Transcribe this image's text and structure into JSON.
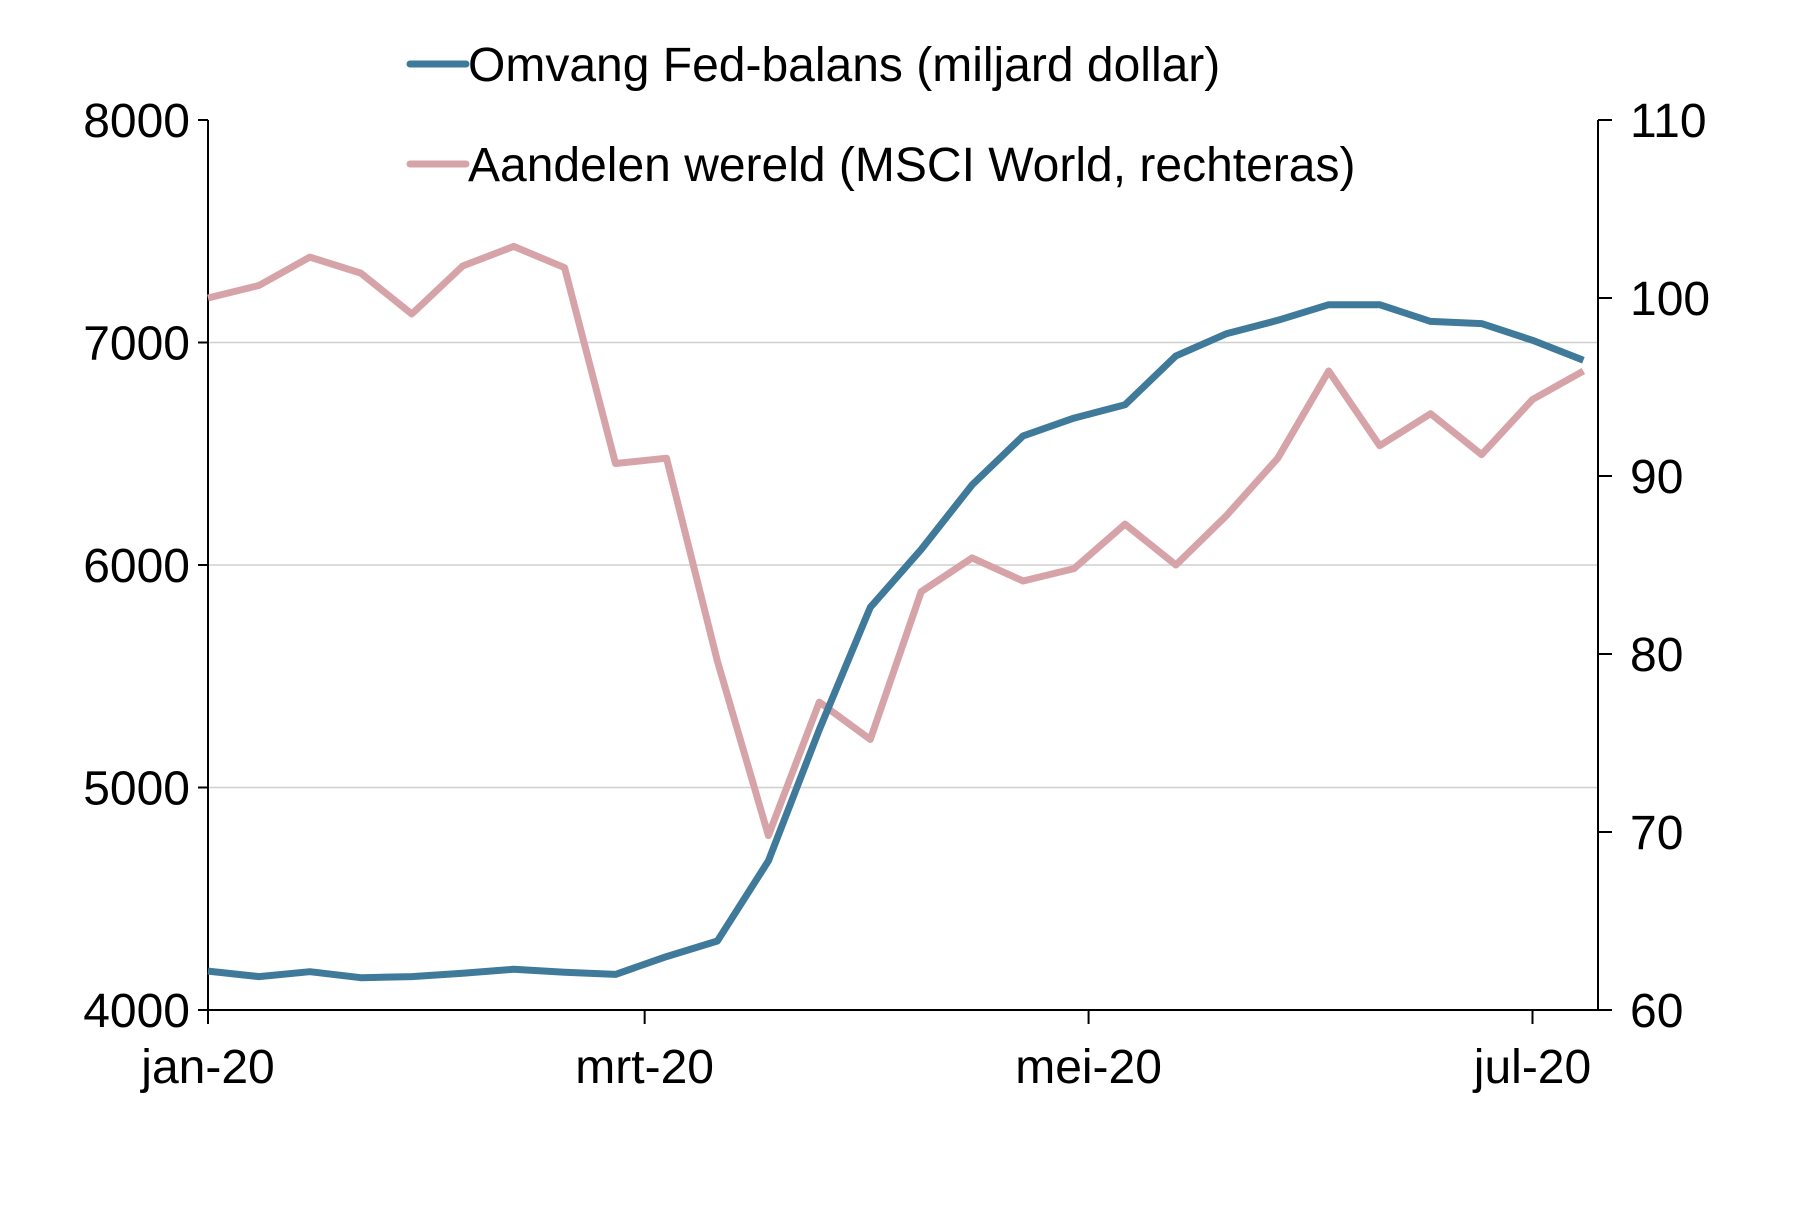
{
  "chart_data": {
    "type": "line",
    "legend_position": "top-center",
    "grid": "horizontal",
    "x_ticks": [
      "jan-20",
      "mrt-20",
      "mei-20",
      "jul-20"
    ],
    "y_left": {
      "ylim": [
        4000,
        8000
      ],
      "ticks": [
        4000,
        5000,
        6000,
        7000,
        8000
      ],
      "grid": true
    },
    "y_right": {
      "ylim": [
        60,
        110
      ],
      "ticks": [
        60,
        70,
        80,
        90,
        100,
        110
      ]
    },
    "series": [
      {
        "name": "Omvang Fed-balans (miljard dollar)",
        "axis": "left",
        "color": "#3f7a9a",
        "x": [
          "2020-01-01",
          "2020-01-08",
          "2020-01-15",
          "2020-01-22",
          "2020-01-29",
          "2020-02-05",
          "2020-02-12",
          "2020-02-19",
          "2020-02-26",
          "2020-03-04",
          "2020-03-11",
          "2020-03-18",
          "2020-03-25",
          "2020-04-01",
          "2020-04-08",
          "2020-04-15",
          "2020-04-22",
          "2020-04-29",
          "2020-05-06",
          "2020-05-13",
          "2020-05-20",
          "2020-05-27",
          "2020-06-03",
          "2020-06-10",
          "2020-06-17",
          "2020-06-24",
          "2020-07-01",
          "2020-07-08"
        ],
        "values": [
          4175,
          4150,
          4172,
          4145,
          4150,
          4165,
          4183,
          4170,
          4160,
          4240,
          4310,
          4670,
          5260,
          5810,
          6070,
          6360,
          6580,
          6660,
          6720,
          6940,
          7040,
          7100,
          7170,
          7170,
          7095,
          7085,
          7010,
          6920
        ]
      },
      {
        "name": "Aandelen wereld (MSCI World, rechteras)",
        "axis": "right",
        "color": "#d6a4a8",
        "x": [
          "2020-01-01",
          "2020-01-08",
          "2020-01-15",
          "2020-01-22",
          "2020-01-29",
          "2020-02-05",
          "2020-02-12",
          "2020-02-19",
          "2020-02-26",
          "2020-03-04",
          "2020-03-11",
          "2020-03-18",
          "2020-03-25",
          "2020-04-01",
          "2020-04-08",
          "2020-04-15",
          "2020-04-22",
          "2020-04-29",
          "2020-05-06",
          "2020-05-13",
          "2020-05-20",
          "2020-05-27",
          "2020-06-03",
          "2020-06-10",
          "2020-06-17",
          "2020-06-24",
          "2020-07-01",
          "2020-07-08"
        ],
        "values": [
          100.0,
          100.7,
          102.3,
          101.4,
          99.1,
          101.8,
          102.9,
          101.7,
          90.7,
          91.0,
          79.6,
          69.8,
          77.3,
          75.2,
          83.5,
          85.4,
          84.1,
          84.8,
          87.3,
          85.0,
          87.8,
          91.0,
          95.9,
          91.7,
          93.5,
          91.2,
          94.3,
          95.9
        ]
      }
    ]
  }
}
